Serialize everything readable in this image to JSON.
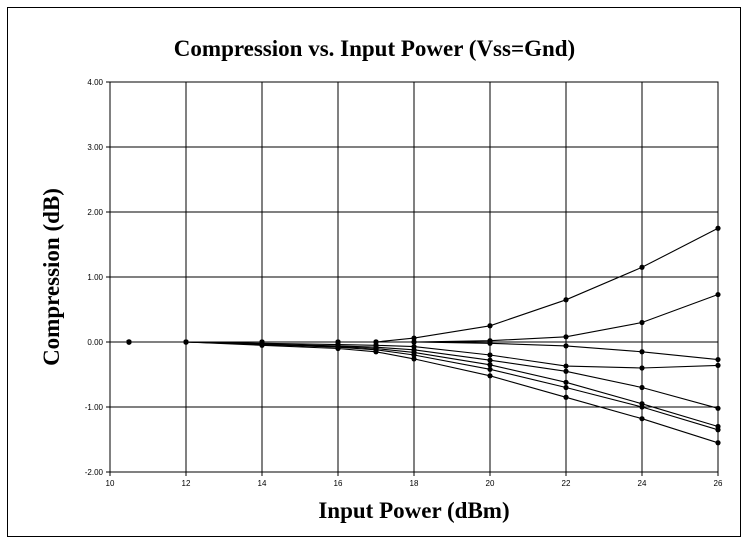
{
  "chart_data": {
    "type": "line",
    "title": "Compression vs. Input Power (Vss=Gnd)",
    "xlabel": "Input Power (dBm)",
    "ylabel": "Compression (dB)",
    "xlim": [
      10,
      26
    ],
    "ylim": [
      -2.0,
      4.0
    ],
    "x_ticks": [
      10,
      12,
      14,
      16,
      18,
      20,
      22,
      24,
      26
    ],
    "x_tick_labels": [
      "10",
      "12",
      "14",
      "16",
      "18",
      "20",
      "22",
      "24",
      "26"
    ],
    "y_ticks": [
      -2.0,
      -1.0,
      0.0,
      1.0,
      2.0,
      3.0,
      4.0
    ],
    "y_tick_labels": [
      "-2.00",
      "-1.00",
      "0.00",
      "1.00",
      "2.00",
      "3.00",
      "4.00"
    ],
    "grid": true,
    "line_color": "#000000",
    "series": [
      {
        "x": [
          10.5,
          12,
          14,
          16,
          17,
          18,
          20,
          22,
          24,
          26
        ],
        "values": [
          0.0,
          0.0,
          0.0,
          0.0,
          0.0,
          0.06,
          0.25,
          0.65,
          1.15,
          1.75
        ]
      },
      {
        "x": [
          10.5,
          12,
          14,
          16,
          17,
          18,
          20,
          22,
          24,
          26
        ],
        "values": [
          0.0,
          0.0,
          0.0,
          0.0,
          0.0,
          0.0,
          0.02,
          0.08,
          0.3,
          0.73
        ]
      },
      {
        "x": [
          10.5,
          12,
          14,
          16,
          17,
          18,
          20,
          22,
          24,
          26
        ],
        "values": [
          0.0,
          0.0,
          0.0,
          0.0,
          0.0,
          0.0,
          -0.02,
          -0.06,
          -0.15,
          -0.27
        ]
      },
      {
        "x": [
          10.5,
          12,
          14,
          16,
          17,
          18,
          20,
          22,
          24,
          26
        ],
        "values": [
          0.0,
          0.0,
          -0.02,
          -0.04,
          -0.05,
          -0.07,
          -0.2,
          -0.37,
          -0.4,
          -0.36
        ]
      },
      {
        "x": [
          10.5,
          12,
          14,
          16,
          17,
          18,
          20,
          22,
          24,
          26
        ],
        "values": [
          0.0,
          0.0,
          -0.03,
          -0.06,
          -0.08,
          -0.12,
          -0.28,
          -0.45,
          -0.7,
          -1.02
        ]
      },
      {
        "x": [
          10.5,
          12,
          14,
          16,
          17,
          18,
          20,
          22,
          24,
          26
        ],
        "values": [
          0.0,
          0.0,
          -0.03,
          -0.07,
          -0.1,
          -0.16,
          -0.35,
          -0.62,
          -0.95,
          -1.3
        ]
      },
      {
        "x": [
          10.5,
          12,
          14,
          16,
          17,
          18,
          20,
          22,
          24,
          26
        ],
        "values": [
          0.0,
          0.0,
          -0.04,
          -0.08,
          -0.12,
          -0.2,
          -0.42,
          -0.7,
          -1.0,
          -1.35
        ]
      },
      {
        "x": [
          10.5,
          12,
          14,
          16,
          17,
          18,
          20,
          22,
          24,
          26
        ],
        "values": [
          0.0,
          0.0,
          -0.05,
          -0.1,
          -0.15,
          -0.26,
          -0.52,
          -0.85,
          -1.18,
          -1.55
        ]
      }
    ]
  }
}
